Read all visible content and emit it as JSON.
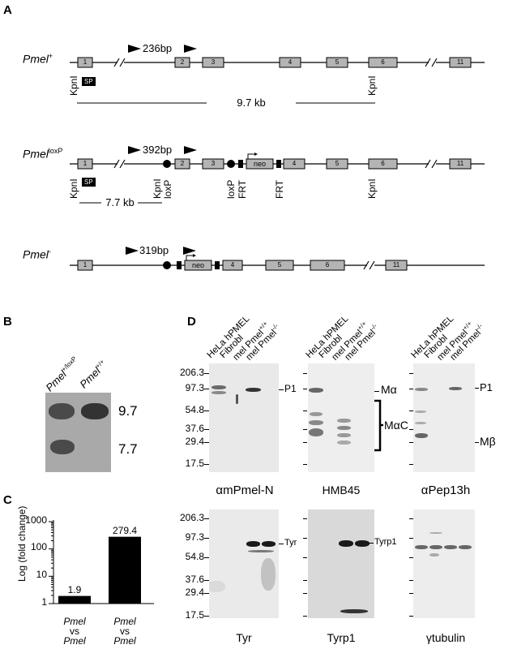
{
  "panels": {
    "A": "A",
    "B": "B",
    "C": "C",
    "D": "D"
  },
  "constructs": {
    "wt": {
      "name": "Pmel",
      "sup": "+",
      "amplicon": "236bp",
      "exons": [
        "1",
        "2",
        "3",
        "4",
        "5",
        "6",
        "11"
      ],
      "kpn1": "KpnI",
      "kpn2": "KpnI",
      "sp": "SP",
      "fragment": "9.7 kb"
    },
    "loxp": {
      "name": "Pmel",
      "sup": "loxP",
      "amplicon": "392bp",
      "exons": [
        "1",
        "2",
        "3",
        "4",
        "5",
        "6",
        "11"
      ],
      "kpn1": "KpnI",
      "sp": "SP",
      "kpn2": "KpnI",
      "loxp1": "loxP",
      "loxp2": "loxP",
      "frt1": "FRT",
      "frt2": "FRT",
      "kpn3": "KpnI",
      "neo": "neo",
      "fragment": "7.7 kb"
    },
    "ko": {
      "name": "Pmel",
      "sup": "-",
      "amplicon": "319bp",
      "exons": [
        "1",
        "4",
        "5",
        "6",
        "11"
      ],
      "neo": "neo"
    }
  },
  "southern": {
    "lanes": [
      {
        "name": "Pmel",
        "sup": "+/loxP"
      },
      {
        "name": "Pmel",
        "sup": "+/+"
      }
    ],
    "sizes": [
      "9.7",
      "7.7"
    ]
  },
  "chart_data": {
    "type": "bar",
    "categories": [
      "Pmel vs Pmel",
      "Pmel vs Pmel"
    ],
    "category_lines": [
      [
        "Pmel",
        "vs",
        "Pmel"
      ],
      [
        "Pmel",
        "vs",
        "Pmel"
      ]
    ],
    "values": [
      1.9,
      279.4
    ],
    "value_labels": [
      "1.9",
      "279.4"
    ],
    "ylabel": "Log (fold change)",
    "yscale": "log",
    "ylim": [
      1,
      1000
    ],
    "yticks": [
      "1000",
      "100",
      "10",
      "1"
    ]
  },
  "western": {
    "lanes": [
      {
        "text": "HeLa hPMEL",
        "sup": ""
      },
      {
        "text": "Fibrobl",
        "sup": ""
      },
      {
        "text": "mel Pmel",
        "sup": "+/+"
      },
      {
        "text": "mel Pmel",
        "sup": "-/-"
      }
    ],
    "mw_markers": [
      "206.3",
      "97.3",
      "54.8",
      "37.6",
      "29.4",
      "17.5"
    ],
    "blots": {
      "top": [
        "αmPmel-N",
        "HMB45",
        "αPep13h"
      ],
      "bottom": [
        "Tyr",
        "Tyrp1",
        "γtubulin"
      ]
    },
    "annotations": {
      "p1a": "P1",
      "malpha": "Mα",
      "malphac": "MαC",
      "p1b": "P1",
      "mbeta": "Mβ",
      "tyr": "Tyr",
      "tyrp1": "Tyrp1"
    }
  }
}
